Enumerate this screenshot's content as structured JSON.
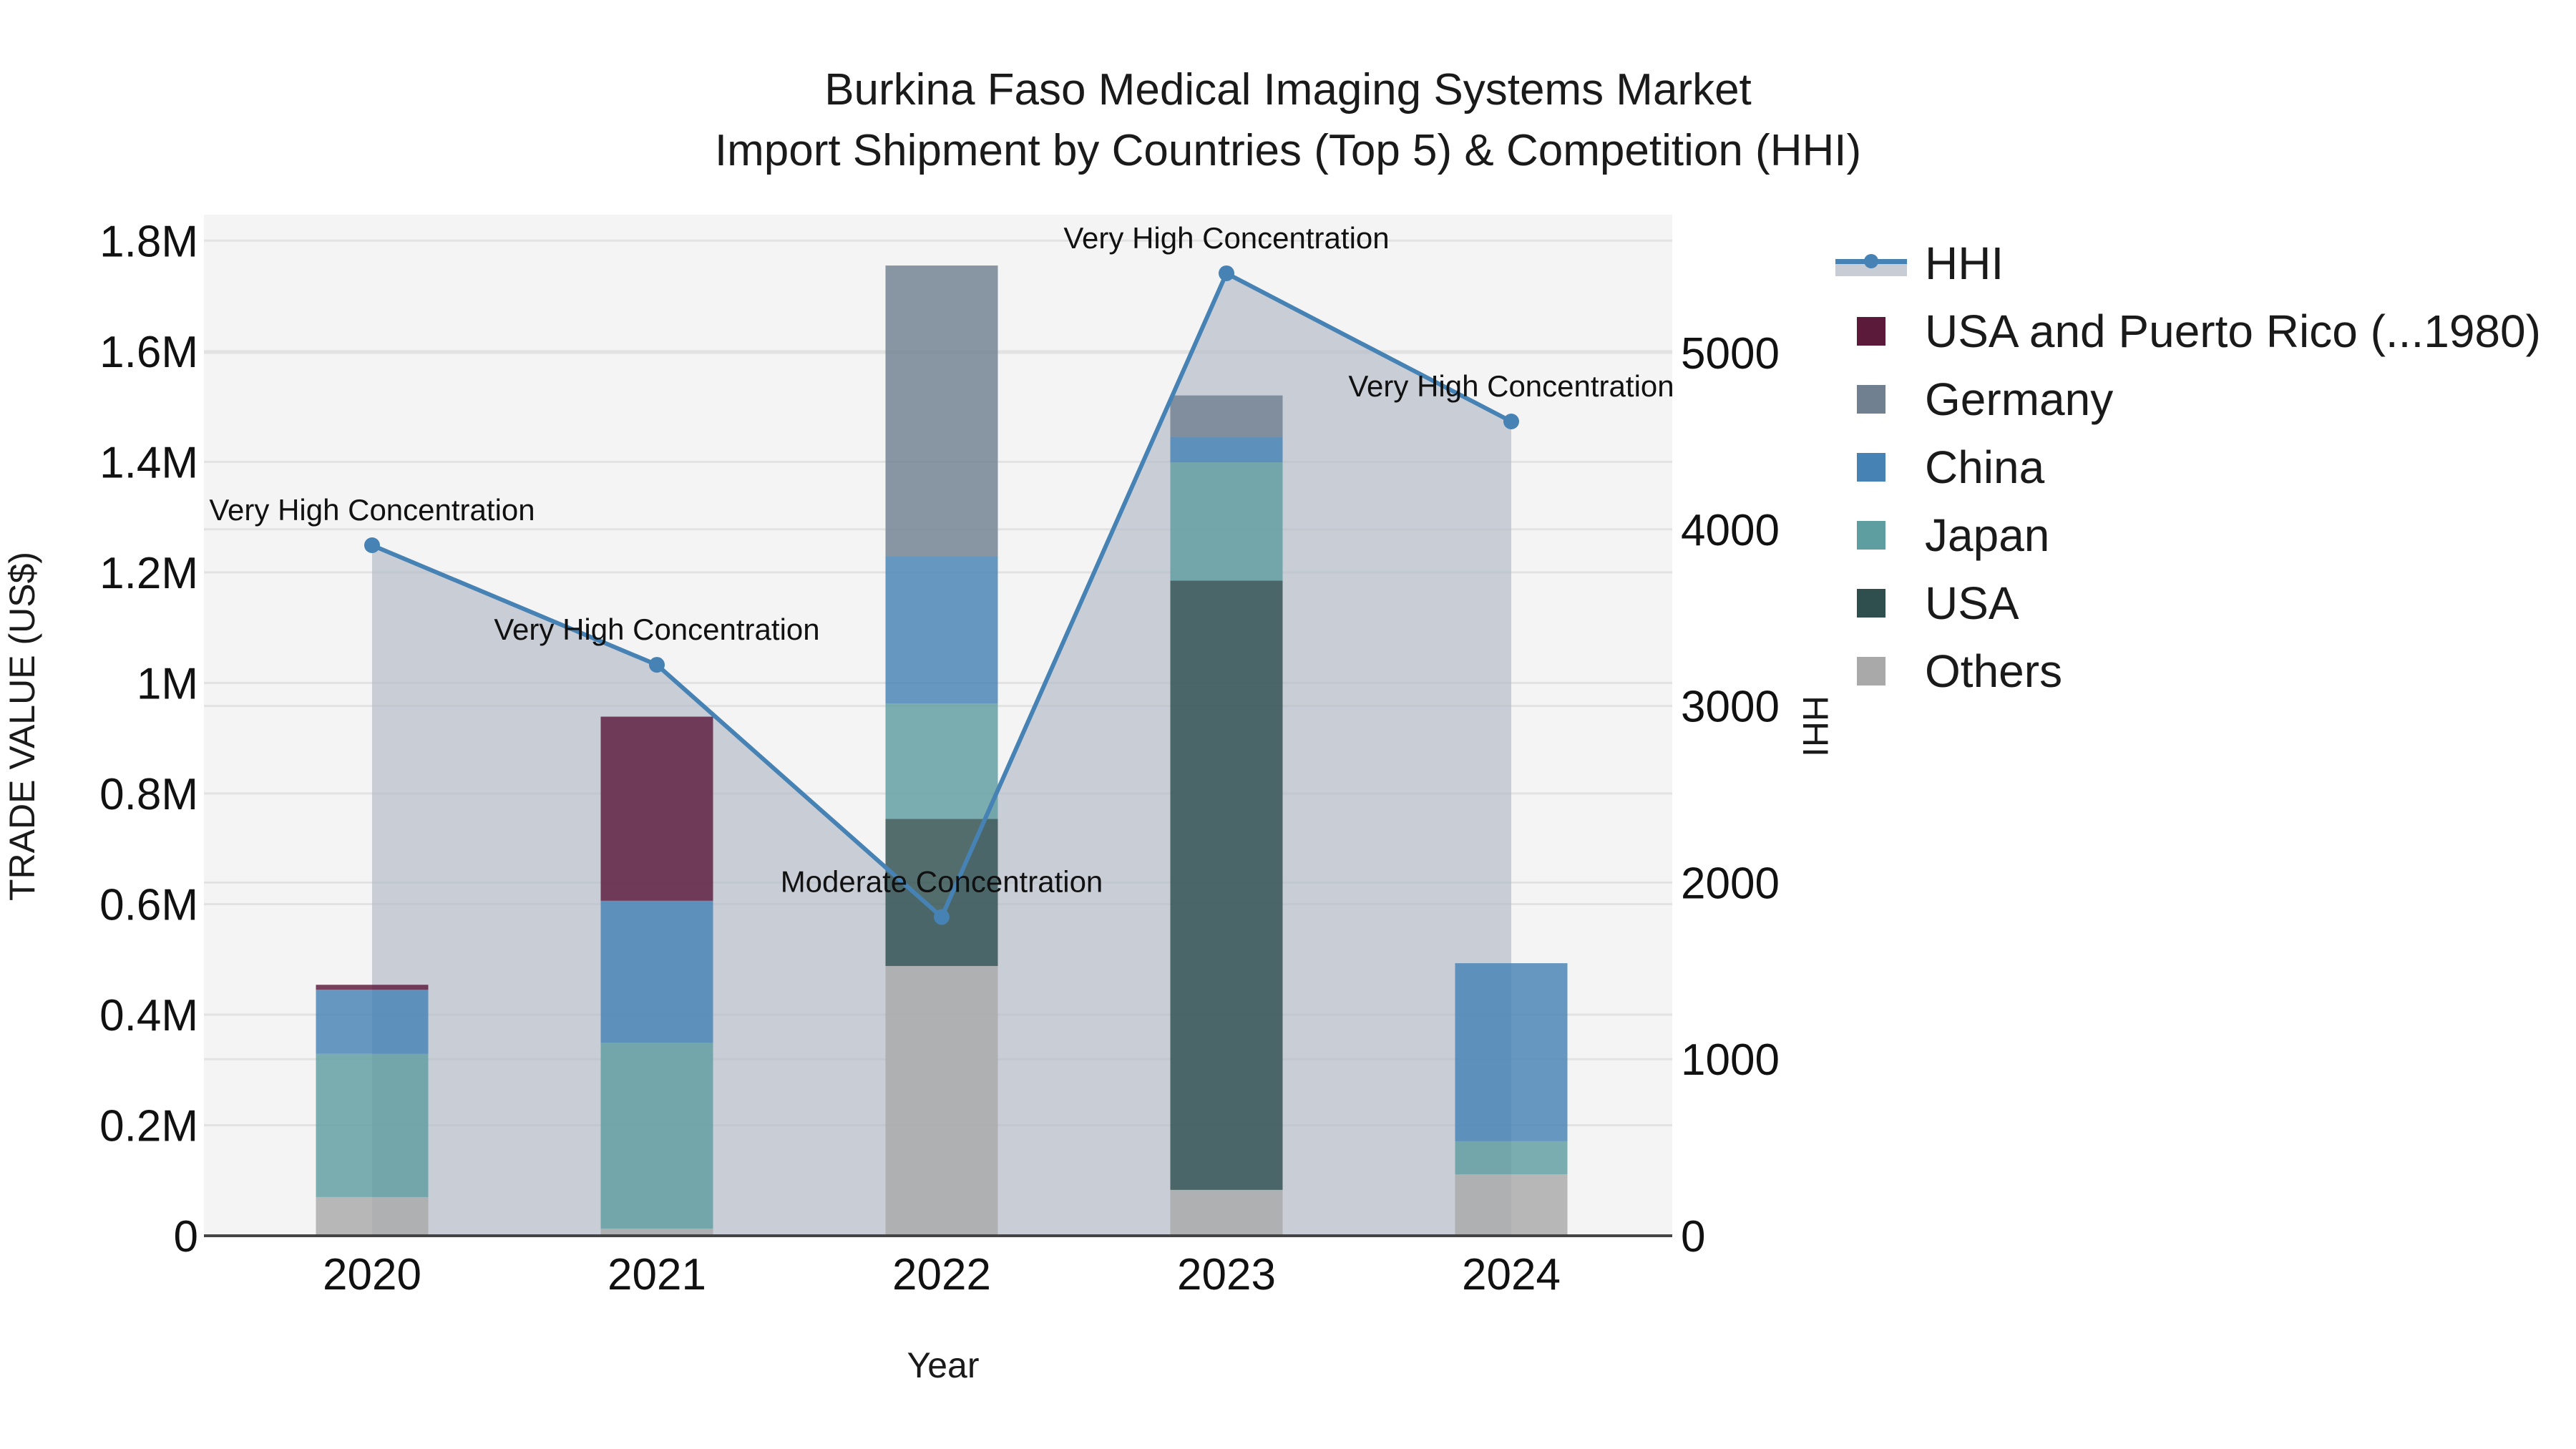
{
  "title": {
    "line1": "Burkina Faso Medical Imaging Systems Market",
    "line2": "Import Shipment by Countries (Top 5) & Competition (HHI)"
  },
  "axes": {
    "x_title": "Year",
    "y_left_title": "TRADE VALUE (US$)",
    "y_right_title": "HHI",
    "y_left_ticks": [
      {
        "value": 0,
        "label": "0"
      },
      {
        "value": 200000,
        "label": "0.2M"
      },
      {
        "value": 400000,
        "label": "0.4M"
      },
      {
        "value": 600000,
        "label": "0.6M"
      },
      {
        "value": 800000,
        "label": "0.8M"
      },
      {
        "value": 1000000,
        "label": "1M"
      },
      {
        "value": 1200000,
        "label": "1.2M"
      },
      {
        "value": 1400000,
        "label": "1.4M"
      },
      {
        "value": 1600000,
        "label": "1.6M"
      },
      {
        "value": 1800000,
        "label": "1.8M"
      }
    ],
    "y_right_ticks": [
      {
        "value": 0,
        "label": "0"
      },
      {
        "value": 1000,
        "label": "1000"
      },
      {
        "value": 2000,
        "label": "2000"
      },
      {
        "value": 3000,
        "label": "3000"
      },
      {
        "value": 4000,
        "label": "4000"
      },
      {
        "value": 5000,
        "label": "5000"
      }
    ]
  },
  "legend": [
    {
      "name": "HHI",
      "type": "line",
      "color": "#4682b4"
    },
    {
      "name": "USA and Puerto Rico (...1980)",
      "type": "bar",
      "color": "#5c1a3a"
    },
    {
      "name": "Germany",
      "type": "bar",
      "color": "#708090"
    },
    {
      "name": "China",
      "type": "bar",
      "color": "#4682b4"
    },
    {
      "name": "Japan",
      "type": "bar",
      "color": "#5f9ea0"
    },
    {
      "name": "USA",
      "type": "bar",
      "color": "#2f4f4f"
    },
    {
      "name": "Others",
      "type": "bar",
      "color": "#a9a9a9"
    }
  ],
  "colors": {
    "plot_bg": "#f4f4f4",
    "grid": "#e2e2e2",
    "hhi_line": "#4682b4",
    "hhi_fill": "rgba(176,184,198,0.65)",
    "axis_line": "#444444"
  },
  "chart_data": {
    "type": "bar",
    "stacked": true,
    "title": "Burkina Faso Medical Imaging Systems Market Import Shipment by Countries (Top 5) & Competition (HHI)",
    "xlabel": "Year",
    "ylabel": "TRADE VALUE (US$)",
    "y2label": "HHI",
    "categories": [
      "2020",
      "2021",
      "2022",
      "2023",
      "2024"
    ],
    "ylim": [
      0,
      1847000
    ],
    "y2lim": [
      0,
      5782
    ],
    "grid": true,
    "legend_position": "right",
    "series": [
      {
        "name": "Others",
        "color": "#a9a9a9",
        "values": [
          70000,
          13000,
          488000,
          83000,
          111000
        ]
      },
      {
        "name": "USA",
        "color": "#2f4f4f",
        "values": [
          0,
          0,
          266000,
          1102000,
          0
        ]
      },
      {
        "name": "Japan",
        "color": "#5f9ea0",
        "values": [
          259000,
          336000,
          209000,
          214000,
          60000
        ]
      },
      {
        "name": "China",
        "color": "#4682b4",
        "values": [
          116000,
          257000,
          266000,
          46000,
          322000
        ]
      },
      {
        "name": "Germany",
        "color": "#708090",
        "values": [
          0,
          0,
          526000,
          75000,
          0
        ]
      },
      {
        "name": "USA and Puerto Rico (...1980)",
        "color": "#5c1a3a",
        "values": [
          9000,
          333000,
          0,
          0,
          0
        ]
      }
    ],
    "line_series": {
      "name": "HHI",
      "axis": "right",
      "color": "#4682b4",
      "fill": "tozeroy",
      "values": [
        3910,
        3233,
        1805,
        5450,
        4611
      ],
      "annotations": [
        "Very High Concentration",
        "Very High Concentration",
        "Moderate Concentration",
        "Very High Concentration",
        "Very High Concentration"
      ]
    }
  }
}
